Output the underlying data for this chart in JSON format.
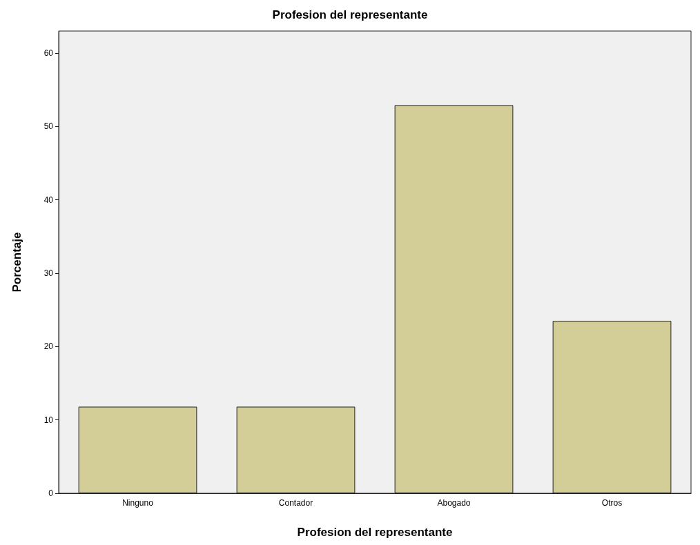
{
  "chart_data": {
    "type": "bar",
    "title": "Profesion del representante",
    "xlabel": "Profesion del representante",
    "ylabel": "Porcentaje",
    "categories": [
      "Ninguno",
      "Contador",
      "Abogado",
      "Otros"
    ],
    "values": [
      11.8,
      11.8,
      52.9,
      23.5
    ],
    "color": "#d3ce97",
    "ylim": [
      0,
      63
    ],
    "yticks": [
      0,
      10,
      20,
      30,
      40,
      50,
      60
    ],
    "grid": false
  }
}
